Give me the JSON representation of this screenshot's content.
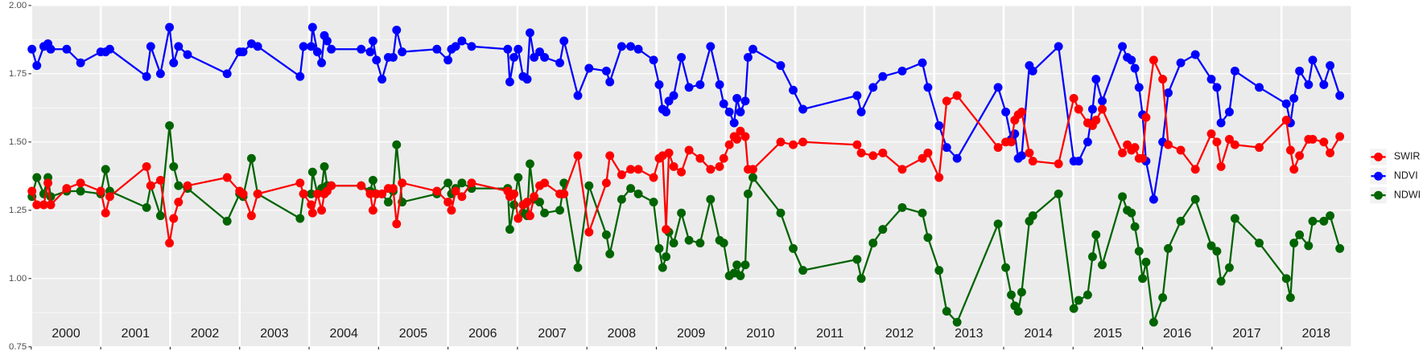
{
  "chart_data": {
    "type": "line",
    "x": [
      2000.01,
      2000.08,
      2000.18,
      2000.24,
      2000.28,
      2000.51,
      2000.71,
      2001.0,
      2001.07,
      2001.13,
      2001.66,
      2001.72,
      2001.86,
      2001.99,
      2002.05,
      2002.12,
      2002.25,
      2002.82,
      2003.0,
      2003.05,
      2003.17,
      2003.26,
      2003.87,
      2003.92,
      2004.03,
      2004.05,
      2004.12,
      2004.18,
      2004.22,
      2004.26,
      2004.32,
      2004.75,
      2004.88,
      2004.92,
      2004.97,
      2005.05,
      2005.14,
      2005.21,
      2005.26,
      2005.34,
      2005.84,
      2006.0,
      2006.05,
      2006.11,
      2006.2,
      2006.34,
      2006.86,
      2006.89,
      2006.95,
      2007.01,
      2007.08,
      2007.14,
      2007.18,
      2007.24,
      2007.32,
      2007.39,
      2007.61,
      2007.67,
      2007.87,
      2008.03,
      2008.28,
      2008.33,
      2008.5,
      2008.63,
      2008.74,
      2008.96,
      2009.04,
      2009.09,
      2009.14,
      2009.18,
      2009.25,
      2009.36,
      2009.47,
      2009.63,
      2009.78,
      2009.91,
      2009.97,
      2010.05,
      2010.12,
      2010.16,
      2010.21,
      2010.28,
      2010.32,
      2010.39,
      2010.79,
      2010.97,
      2011.11,
      2011.89,
      2011.95,
      2012.12,
      2012.26,
      2012.54,
      2012.83,
      2012.91,
      2013.07,
      2013.18,
      2013.33,
      2013.92,
      2014.03,
      2014.11,
      2014.16,
      2014.21,
      2014.26,
      2014.37,
      2014.42,
      2014.79,
      2015.01,
      2015.08,
      2015.21,
      2015.28,
      2015.33,
      2015.42,
      2015.71,
      2015.78,
      2015.84,
      2015.89,
      2015.95,
      2016.0,
      2016.05,
      2016.16,
      2016.29,
      2016.37,
      2016.55,
      2016.76,
      2016.99,
      2017.07,
      2017.13,
      2017.25,
      2017.33,
      2017.68,
      2018.07,
      2018.13,
      2018.18,
      2018.26,
      2018.39,
      2018.45,
      2018.61,
      2018.7,
      2018.84
    ],
    "series": [
      {
        "name": "SWIR",
        "color": "#ff0000",
        "values": [
          1.32,
          1.27,
          1.27,
          1.35,
          1.27,
          1.33,
          1.35,
          1.32,
          1.24,
          1.3,
          1.41,
          1.34,
          1.36,
          1.13,
          1.22,
          1.28,
          1.34,
          1.37,
          1.32,
          1.31,
          1.23,
          1.31,
          1.35,
          1.31,
          1.27,
          1.24,
          1.31,
          1.25,
          1.31,
          1.32,
          1.34,
          1.34,
          1.31,
          1.25,
          1.31,
          1.31,
          1.33,
          1.33,
          1.2,
          1.35,
          1.32,
          1.28,
          1.25,
          1.32,
          1.3,
          1.35,
          1.32,
          1.3,
          1.31,
          1.22,
          1.27,
          1.28,
          1.23,
          1.3,
          1.34,
          1.35,
          1.31,
          1.31,
          1.45,
          1.17,
          1.35,
          1.45,
          1.38,
          1.4,
          1.4,
          1.37,
          1.44,
          1.45,
          1.18,
          1.46,
          1.41,
          1.39,
          1.47,
          1.44,
          1.4,
          1.41,
          1.44,
          1.49,
          1.52,
          1.51,
          1.54,
          1.52,
          1.4,
          1.4,
          1.5,
          1.49,
          1.5,
          1.49,
          1.46,
          1.45,
          1.46,
          1.4,
          1.44,
          1.46,
          1.37,
          1.65,
          1.67,
          1.48,
          1.5,
          1.5,
          1.58,
          1.6,
          1.61,
          1.46,
          1.43,
          1.42,
          1.66,
          1.62,
          1.57,
          1.56,
          1.58,
          1.62,
          1.46,
          1.49,
          1.47,
          1.48,
          1.44,
          1.44,
          1.59,
          1.8,
          1.73,
          1.49,
          1.47,
          1.4,
          1.53,
          1.5,
          1.41,
          1.51,
          1.49,
          1.48,
          1.58,
          1.47,
          1.4,
          1.45,
          1.51,
          1.51,
          1.5,
          1.46,
          1.52
        ]
      },
      {
        "name": "NDVI",
        "color": "#0000ff",
        "values": [
          1.84,
          1.78,
          1.85,
          1.86,
          1.84,
          1.84,
          1.79,
          1.83,
          1.83,
          1.84,
          1.74,
          1.85,
          1.75,
          1.92,
          1.79,
          1.85,
          1.82,
          1.75,
          1.83,
          1.83,
          1.86,
          1.85,
          1.74,
          1.85,
          1.85,
          1.92,
          1.83,
          1.79,
          1.89,
          1.87,
          1.84,
          1.84,
          1.83,
          1.87,
          1.8,
          1.73,
          1.81,
          1.81,
          1.91,
          1.83,
          1.84,
          1.8,
          1.84,
          1.85,
          1.87,
          1.85,
          1.84,
          1.72,
          1.81,
          1.84,
          1.74,
          1.73,
          1.9,
          1.81,
          1.83,
          1.81,
          1.79,
          1.87,
          1.67,
          1.77,
          1.76,
          1.72,
          1.85,
          1.85,
          1.84,
          1.8,
          1.71,
          1.62,
          1.61,
          1.65,
          1.67,
          1.81,
          1.7,
          1.71,
          1.85,
          1.71,
          1.64,
          1.61,
          1.57,
          1.66,
          1.61,
          1.65,
          1.81,
          1.84,
          1.78,
          1.69,
          1.62,
          1.67,
          1.61,
          1.7,
          1.74,
          1.76,
          1.79,
          1.7,
          1.56,
          1.48,
          1.44,
          1.7,
          1.61,
          1.51,
          1.53,
          1.44,
          1.45,
          1.78,
          1.76,
          1.85,
          1.43,
          1.43,
          1.5,
          1.62,
          1.73,
          1.65,
          1.85,
          1.81,
          1.8,
          1.77,
          1.7,
          1.6,
          1.43,
          1.29,
          1.5,
          1.68,
          1.79,
          1.82,
          1.73,
          1.7,
          1.57,
          1.61,
          1.76,
          1.7,
          1.64,
          1.57,
          1.66,
          1.76,
          1.71,
          1.8,
          1.71,
          1.78,
          1.67
        ]
      },
      {
        "name": "NDWI",
        "color": "#006400",
        "values": [
          1.3,
          1.37,
          1.31,
          1.37,
          1.3,
          1.32,
          1.32,
          1.31,
          1.4,
          1.32,
          1.26,
          1.34,
          1.23,
          1.56,
          1.41,
          1.34,
          1.33,
          1.21,
          1.31,
          1.3,
          1.44,
          1.31,
          1.22,
          1.31,
          1.31,
          1.39,
          1.31,
          1.33,
          1.41,
          1.34,
          1.34,
          1.34,
          1.32,
          1.36,
          1.31,
          1.31,
          1.28,
          1.32,
          1.49,
          1.28,
          1.31,
          1.35,
          1.31,
          1.33,
          1.35,
          1.33,
          1.33,
          1.18,
          1.27,
          1.37,
          1.24,
          1.23,
          1.42,
          1.29,
          1.28,
          1.24,
          1.25,
          1.35,
          1.04,
          1.34,
          1.16,
          1.09,
          1.29,
          1.33,
          1.31,
          1.28,
          1.11,
          1.04,
          1.08,
          1.17,
          1.13,
          1.24,
          1.14,
          1.13,
          1.29,
          1.14,
          1.13,
          1.01,
          1.02,
          1.05,
          1.01,
          1.05,
          1.31,
          1.37,
          1.24,
          1.11,
          1.03,
          1.07,
          1.0,
          1.13,
          1.18,
          1.26,
          1.24,
          1.15,
          1.03,
          0.88,
          0.84,
          1.2,
          1.04,
          0.94,
          0.9,
          0.88,
          0.95,
          1.21,
          1.23,
          1.31,
          0.89,
          0.92,
          0.94,
          1.08,
          1.16,
          1.05,
          1.3,
          1.25,
          1.24,
          1.19,
          1.1,
          1.0,
          1.06,
          0.84,
          0.93,
          1.11,
          1.21,
          1.29,
          1.12,
          1.1,
          0.99,
          1.04,
          1.22,
          1.13,
          1.0,
          0.93,
          1.13,
          1.16,
          1.12,
          1.21,
          1.21,
          1.23,
          1.11
        ]
      }
    ],
    "xlim": [
      2000,
      2019
    ],
    "xticks": [
      2000,
      2001,
      2002,
      2003,
      2004,
      2005,
      2006,
      2007,
      2008,
      2009,
      2010,
      2011,
      2012,
      2013,
      2014,
      2015,
      2016,
      2017,
      2018
    ],
    "ylim": [
      0.75,
      2.0
    ],
    "yticks": [
      0.75,
      {
        "value": 1.0,
        "label": "1.00"
      },
      1.25,
      {
        "value": 1.5,
        "label": "1.50"
      },
      1.75,
      {
        "value": 2.0,
        "label": "2.00"
      }
    ],
    "grid": true,
    "legend": "right"
  }
}
